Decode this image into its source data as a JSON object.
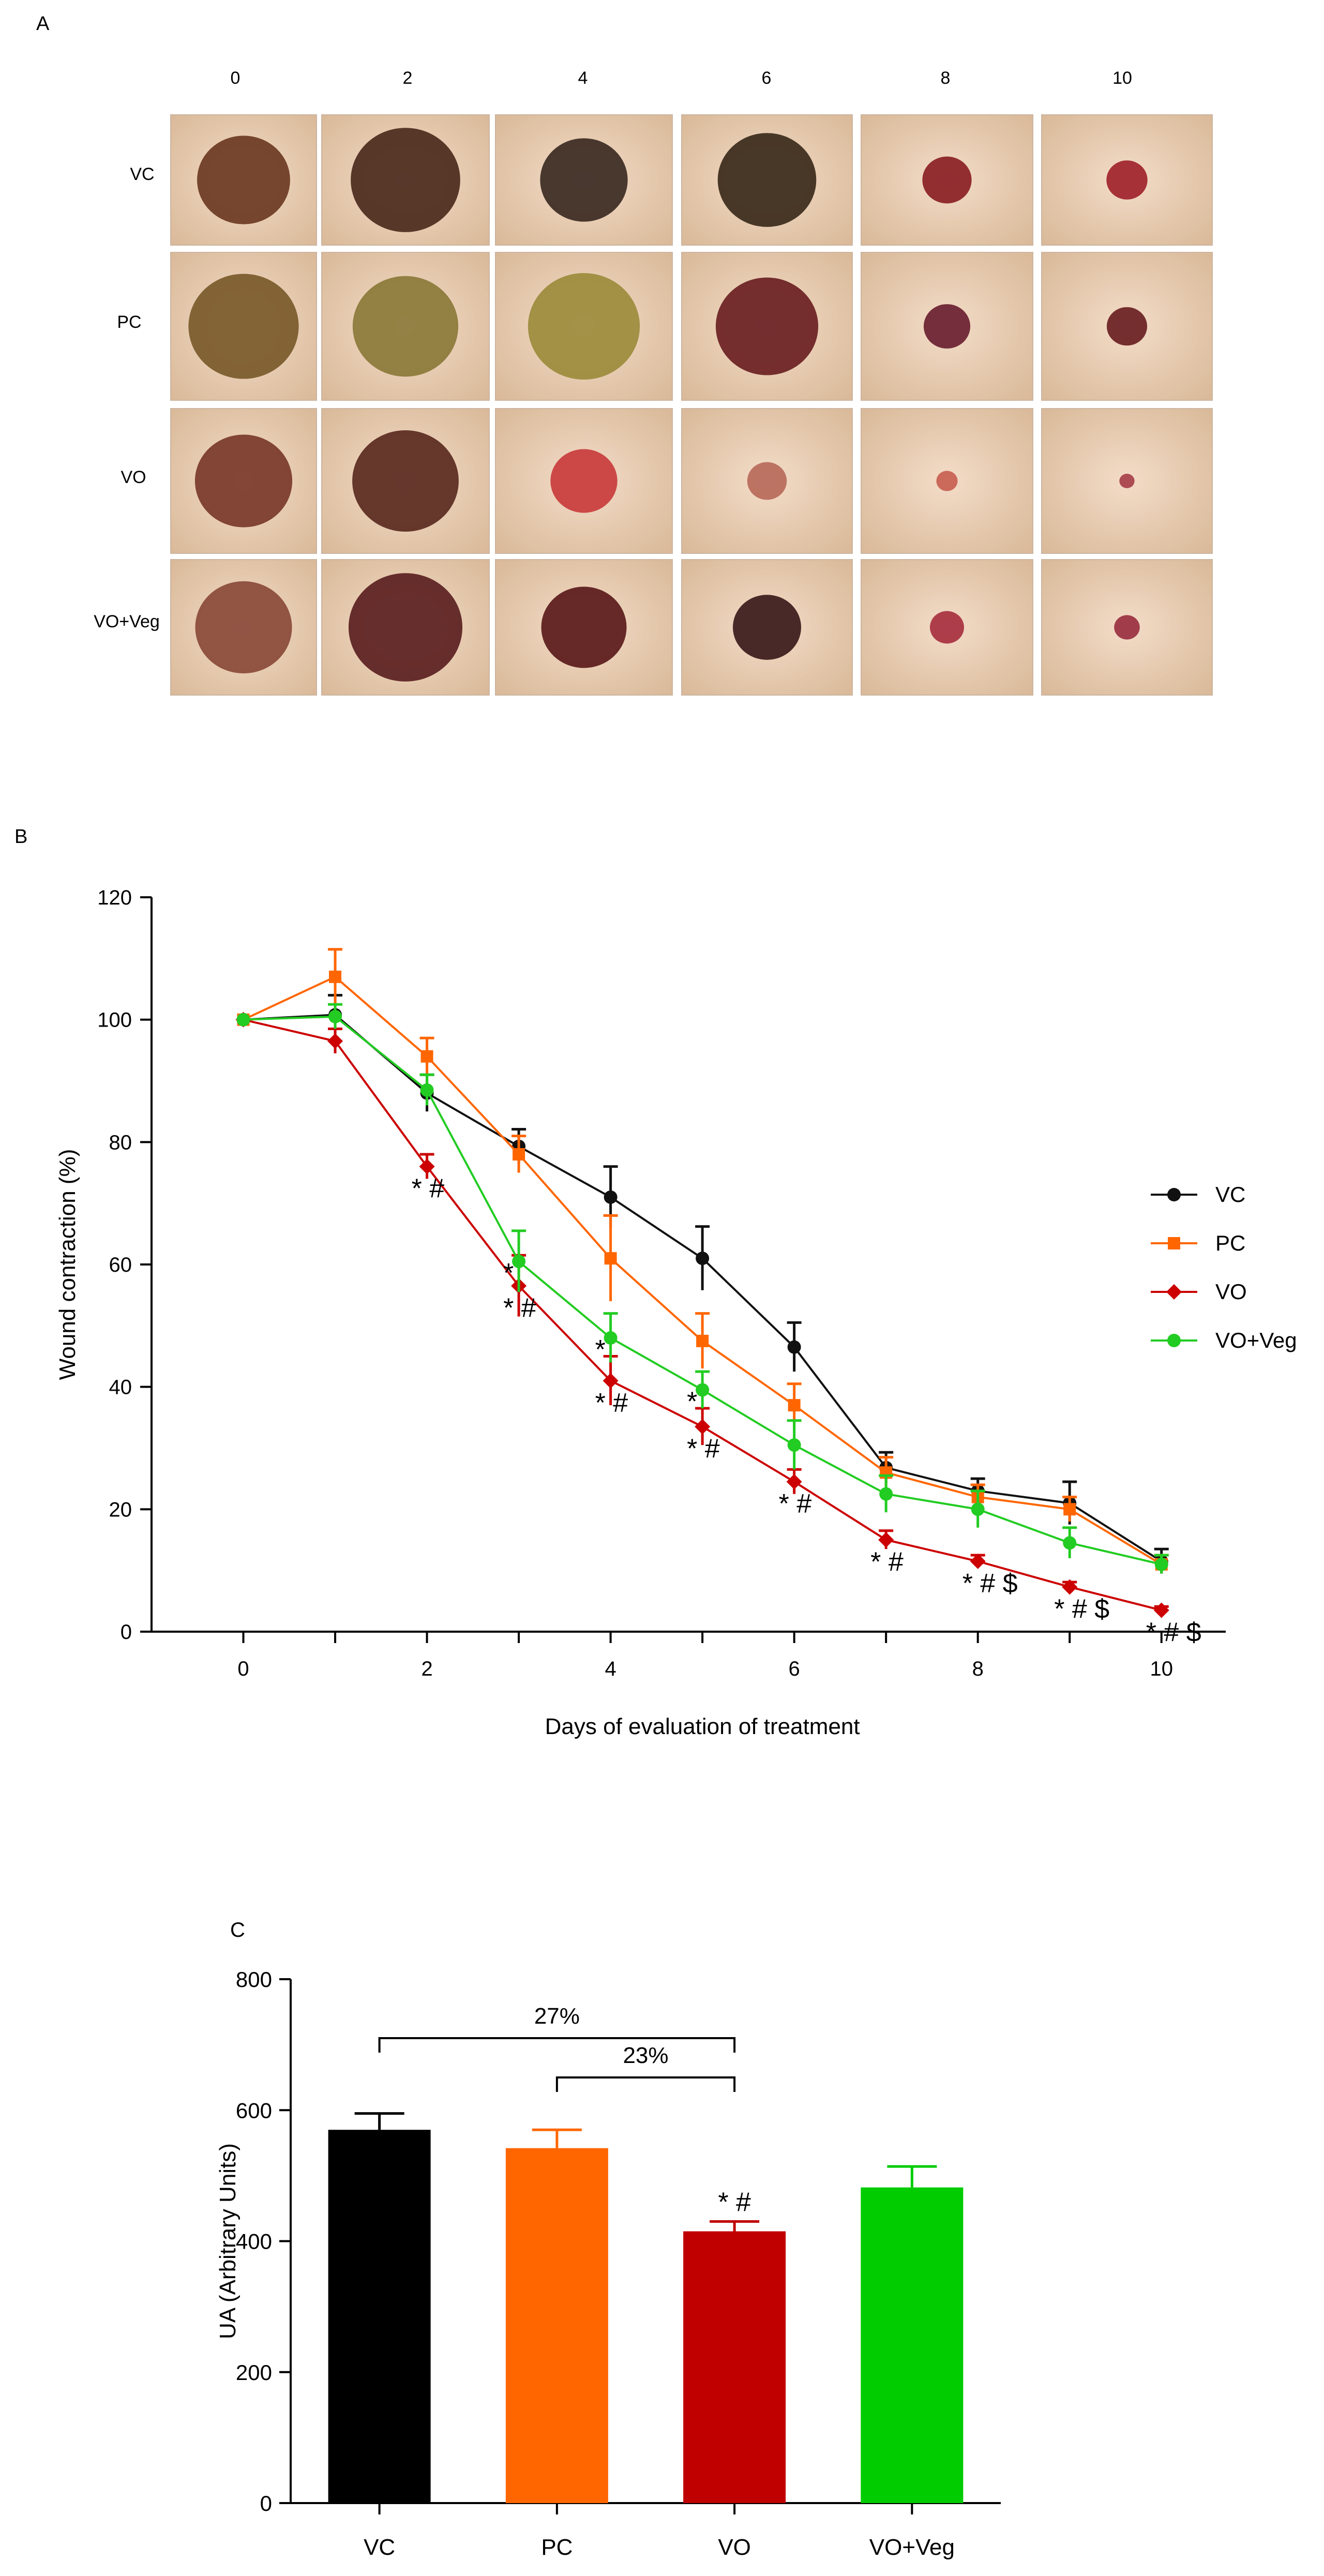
{
  "panel_a": {
    "label": "A",
    "columns": [
      "0",
      "2",
      "4",
      "6",
      "8",
      "10"
    ],
    "rows": [
      "VC",
      "PC",
      "VO",
      "VO+Veg"
    ]
  },
  "chart_data": [
    {
      "panel": "B",
      "type": "line",
      "x": [
        0,
        1,
        2,
        3,
        4,
        5,
        6,
        7,
        8,
        9,
        10
      ],
      "xticks": [
        0,
        2,
        4,
        6,
        8,
        10
      ],
      "yticks": [
        0,
        20,
        40,
        60,
        80,
        100,
        120
      ],
      "xlim": [
        -1,
        10.7
      ],
      "ylim": [
        0,
        120
      ],
      "xlabel": "Days of evaluation of treatment",
      "ylabel": "Wound contraction (%)",
      "legend_position": "right",
      "series": [
        {
          "name": "VC",
          "color": "#111111",
          "marker": "circle",
          "values": [
            100,
            100.8,
            88,
            79.3,
            71,
            61,
            46.5,
            26.8,
            23,
            21,
            11.5
          ],
          "errors": [
            0,
            3.2,
            3,
            2.8,
            5,
            5.2,
            4,
            2.5,
            2,
            3.5,
            2
          ]
        },
        {
          "name": "PC",
          "color": "#ff6600",
          "marker": "square",
          "values": [
            100,
            107,
            94,
            78,
            61,
            47.5,
            37,
            26,
            22,
            20,
            11
          ],
          "errors": [
            0,
            4.5,
            3,
            3,
            7,
            4.5,
            3.5,
            2.5,
            2,
            2,
            1.5
          ]
        },
        {
          "name": "VO",
          "color": "#cc0000",
          "marker": "diamond",
          "values": [
            100,
            96.5,
            76,
            56.5,
            41,
            33.5,
            24.5,
            15,
            11.5,
            7.3,
            3.5
          ],
          "errors": [
            0,
            2,
            2,
            5,
            4,
            3,
            2,
            1.5,
            1,
            0.8,
            0.6
          ]
        },
        {
          "name": "VO+Veg",
          "color": "#22cc22",
          "marker": "circle",
          "values": [
            100,
            100.5,
            88.5,
            60.5,
            48,
            39.5,
            30.5,
            22.5,
            20,
            14.5,
            11
          ],
          "errors": [
            0,
            2,
            2.5,
            5,
            4,
            3,
            4,
            3,
            3,
            2.5,
            1.5
          ]
        }
      ],
      "annotations": [
        {
          "x": 2,
          "text": "* #"
        },
        {
          "x": 3,
          "text": "*"
        },
        {
          "x": 3,
          "text": "* #"
        },
        {
          "x": 4,
          "text": "*"
        },
        {
          "x": 4,
          "text": "* #"
        },
        {
          "x": 5,
          "text": "*"
        },
        {
          "x": 5,
          "text": "* #"
        },
        {
          "x": 6,
          "text": "* #"
        },
        {
          "x": 7,
          "text": "* #"
        },
        {
          "x": 8,
          "text": "* # $"
        },
        {
          "x": 9,
          "text": "* # $"
        },
        {
          "x": 10,
          "text": "* # $"
        }
      ]
    },
    {
      "panel": "C",
      "type": "bar",
      "categories": [
        "VC",
        "PC",
        "VO",
        "VO+Veg"
      ],
      "values": [
        570,
        542,
        415,
        482
      ],
      "errors": [
        25,
        28,
        15,
        32
      ],
      "colors": [
        "#000000",
        "#ff6600",
        "#c00000",
        "#00cc00"
      ],
      "yticks": [
        0,
        200,
        400,
        600,
        800
      ],
      "ylim": [
        0,
        800
      ],
      "xlabel": "",
      "ylabel": "UA (Arbitrary Units)",
      "bar_annotation": {
        "category": "VO",
        "text": "* #"
      },
      "brackets": [
        {
          "from": "VC",
          "to": "VO",
          "label": "27%"
        },
        {
          "from": "PC",
          "to": "VO",
          "label": "23%"
        }
      ]
    }
  ]
}
